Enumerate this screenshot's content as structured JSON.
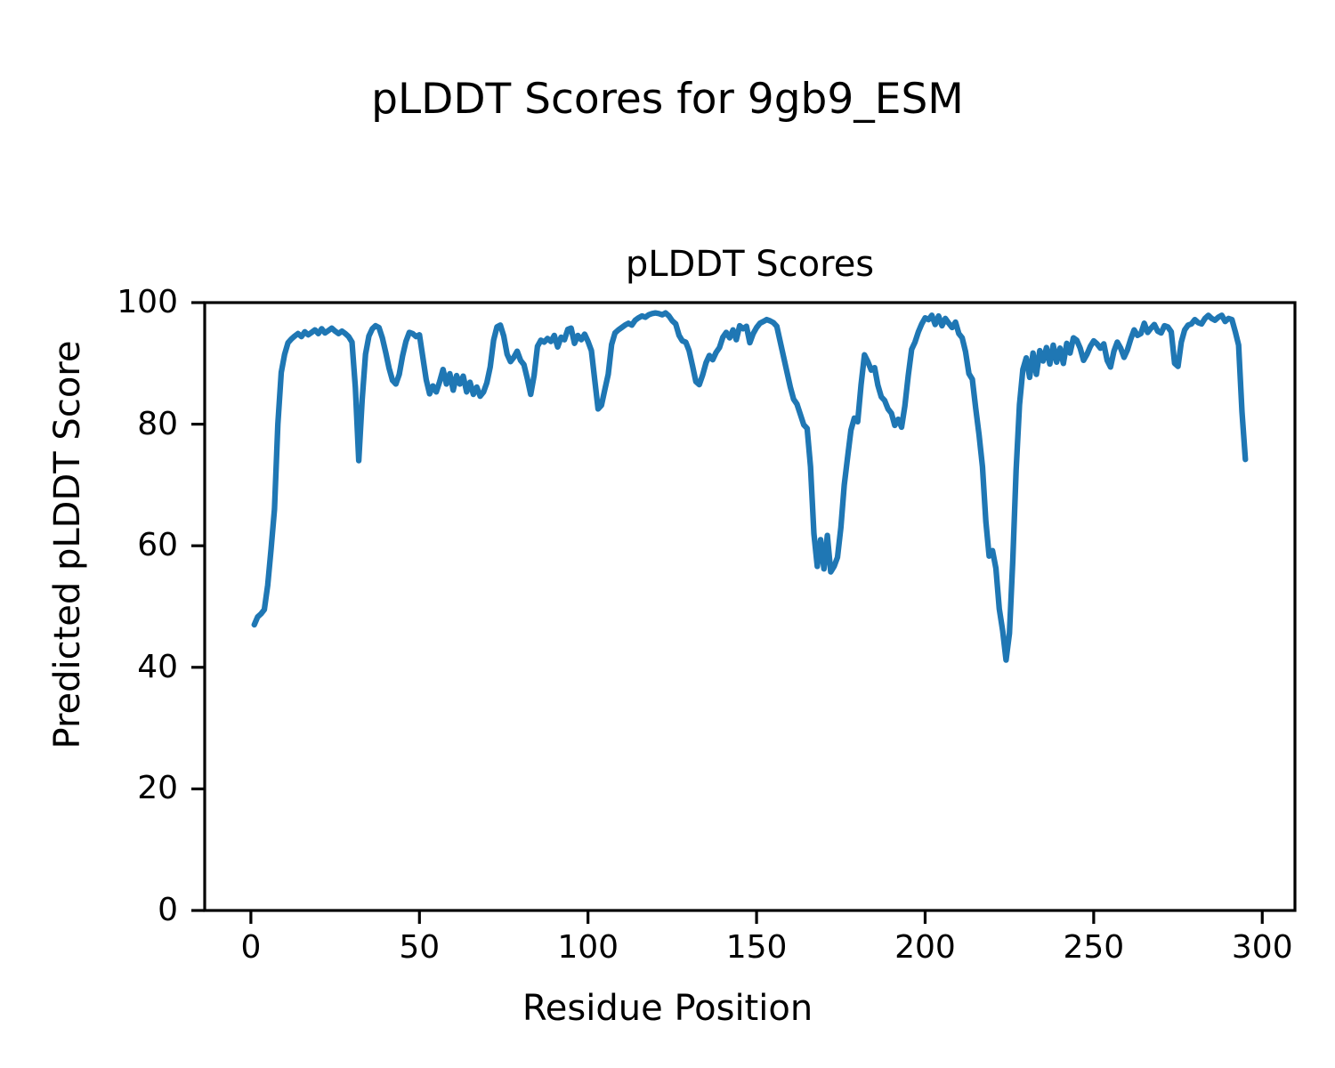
{
  "figure": {
    "suptitle": "pLDDT Scores for 9gb9_ESM",
    "background_color": "#ffffff",
    "text_color": "#000000"
  },
  "chart_data": {
    "type": "line",
    "title": "pLDDT Scores",
    "xlabel": "Residue Position",
    "ylabel": "Predicted pLDDT Score",
    "xlim": [
      -13.7,
      309.7
    ],
    "ylim": [
      0,
      100
    ],
    "xticks": [
      0,
      50,
      100,
      150,
      200,
      250,
      300
    ],
    "yticks": [
      0,
      20,
      40,
      60,
      80,
      100
    ],
    "grid": false,
    "legend": false,
    "line_color": "#1f77b4",
    "line_width": 6.3,
    "spine_color": "#000000",
    "series": [
      {
        "name": "pLDDT",
        "x_start": 1,
        "x_step": 1,
        "y_values": [
          47.0,
          48.3,
          48.8,
          49.5,
          53.5,
          59.5,
          66.0,
          80.0,
          88.5,
          91.5,
          93.4,
          94.0,
          94.5,
          94.9,
          94.4,
          95.2,
          94.7,
          95.1,
          95.5,
          94.9,
          95.7,
          95.0,
          95.4,
          95.8,
          95.3,
          94.9,
          95.3,
          94.9,
          94.4,
          93.5,
          86.0,
          74.0,
          84.0,
          91.5,
          94.5,
          95.7,
          96.2,
          95.9,
          94.2,
          91.8,
          89.2,
          87.2,
          86.6,
          88.2,
          91.2,
          93.6,
          95.1,
          94.9,
          94.4,
          94.7,
          91.0,
          87.3,
          85.0,
          86.3,
          85.3,
          87.0,
          89.0,
          86.6,
          88.3,
          85.6,
          88.0,
          86.6,
          87.9,
          85.3,
          86.9,
          84.9,
          86.1,
          84.6,
          85.3,
          86.8,
          89.4,
          93.8,
          96.0,
          96.3,
          94.5,
          91.5,
          90.3,
          91.0,
          92.0,
          90.5,
          89.8,
          87.5,
          84.9,
          88.0,
          92.8,
          93.8,
          93.5,
          94.1,
          93.6,
          94.6,
          92.7,
          94.3,
          93.9,
          95.6,
          95.8,
          93.3,
          94.6,
          93.9,
          94.8,
          93.6,
          92.1,
          87.2,
          82.5,
          83.1,
          85.7,
          88.2,
          93.1,
          95.0,
          95.5,
          95.9,
          96.3,
          96.6,
          96.3,
          97.1,
          97.5,
          97.8,
          97.6,
          98.0,
          98.2,
          98.3,
          98.2,
          98.0,
          98.3,
          97.8,
          97.0,
          96.5,
          94.6,
          93.7,
          93.5,
          92.1,
          89.6,
          87.0,
          86.5,
          88.1,
          90.1,
          91.3,
          90.6,
          91.8,
          92.6,
          94.3,
          95.1,
          94.2,
          95.5,
          93.9,
          96.2,
          95.7,
          96.1,
          93.4,
          94.9,
          95.9,
          96.6,
          96.9,
          97.2,
          97.0,
          96.7,
          96.1,
          93.6,
          91.1,
          88.6,
          86.1,
          84.1,
          83.3,
          81.6,
          79.9,
          79.3,
          73.0,
          62.0,
          56.6,
          61.0,
          56.2,
          61.7,
          55.7,
          56.6,
          58.1,
          63.0,
          70.0,
          74.5,
          79.0,
          81.0,
          80.4,
          86.5,
          91.4,
          90.3,
          88.9,
          89.3,
          86.4,
          84.5,
          83.9,
          82.5,
          81.8,
          79.8,
          80.8,
          79.5,
          83.0,
          88.0,
          92.3,
          93.5,
          95.2,
          96.5,
          97.5,
          97.2,
          97.9,
          96.4,
          97.8,
          96.2,
          97.4,
          96.6,
          95.9,
          96.8,
          94.9,
          94.2,
          91.9,
          88.3,
          87.4,
          82.6,
          78.2,
          73.0,
          64.0,
          58.3,
          59.2,
          56.3,
          49.6,
          46.0,
          41.2,
          45.6,
          57.7,
          72.4,
          83.2,
          89.0,
          90.9,
          87.7,
          91.7,
          88.2,
          92.1,
          90.4,
          92.6,
          89.9,
          93.0,
          90.2,
          92.5,
          90.0,
          93.3,
          91.7,
          94.2,
          93.8,
          92.5,
          90.5,
          91.5,
          92.8,
          93.7,
          93.2,
          92.5,
          93.2,
          90.5,
          89.4,
          92.0,
          93.5,
          92.5,
          91.0,
          92.2,
          94.0,
          95.5,
          94.6,
          94.9,
          96.6,
          95.1,
          95.8,
          96.4,
          95.3,
          95.0,
          96.2,
          96.0,
          95.2,
          90.0,
          89.5,
          93.5,
          95.5,
          96.3,
          96.5,
          97.2,
          96.7,
          96.5,
          97.4,
          97.9,
          97.4,
          97.1,
          97.6,
          97.9,
          96.9,
          97.4,
          97.2,
          95.2,
          93.0,
          82.0,
          74.2
        ]
      }
    ]
  }
}
